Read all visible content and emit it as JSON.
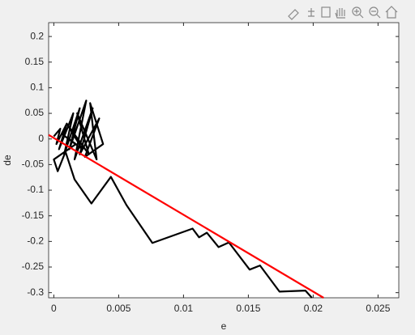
{
  "chart_data": {
    "type": "line",
    "xlabel": "e",
    "ylabel": "de",
    "xlim": [
      -0.0004,
      0.0266
    ],
    "ylim": [
      -0.31,
      0.227
    ],
    "xticks": [
      0,
      0.005,
      0.01,
      0.015,
      0.02,
      0.025
    ],
    "yticks": [
      -0.3,
      -0.25,
      -0.2,
      -0.15,
      -0.1,
      -0.05,
      0,
      0.05,
      0.1,
      0.15,
      0.2
    ],
    "grid": false,
    "series": [
      {
        "color": "#000000",
        "x": [
          0,
          0.0005,
          0.0002,
          0.001,
          0.0004,
          0.0015,
          0.0008,
          0.002,
          0.0012,
          0.0025,
          0.0016,
          0.003,
          0.002,
          0.0035,
          0.0024,
          0.0038,
          0.0028,
          0.0033,
          0.0018,
          0.0027,
          0.001,
          0.0022,
          0.0006,
          0.0017,
          0,
          0.0003,
          0.0009,
          0.0016,
          0.0029,
          0.0044,
          0.0056,
          0.0076,
          0.0107,
          0.0112,
          0.0118,
          0.0127,
          0.0135,
          0.0151,
          0.0159,
          0.0174,
          0.0194,
          0.0199
        ],
        "values": [
          0.005,
          0.02,
          -0.01,
          0.03,
          -0.02,
          0.05,
          -0.03,
          0.06,
          -0.02,
          0.075,
          -0.04,
          0.06,
          -0.03,
          0.04,
          -0.035,
          -0.01,
          0.07,
          -0.04,
          0.05,
          -0.03,
          0.03,
          -0.02,
          0.01,
          -0.01,
          -0.04,
          -0.063,
          -0.025,
          -0.079,
          -0.126,
          -0.074,
          -0.129,
          -0.203,
          -0.175,
          -0.192,
          -0.183,
          -0.211,
          -0.202,
          -0.255,
          -0.247,
          -0.298,
          -0.296,
          -0.31
        ]
      },
      {
        "color": "#ff0000",
        "x": [
          -0.0004,
          0.0208
        ],
        "values": [
          0.008,
          -0.31
        ]
      }
    ]
  }
}
